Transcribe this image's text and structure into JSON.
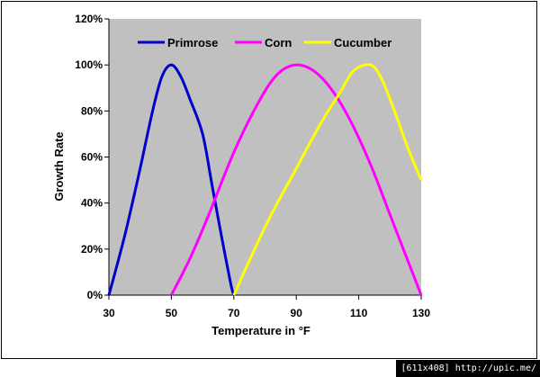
{
  "chart_data": {
    "type": "line",
    "xlabel": "Temperature in °F",
    "ylabel": "Growth Rate",
    "xlim": [
      30,
      130
    ],
    "ylim": [
      0,
      120
    ],
    "x_ticks": [
      "30",
      "50",
      "70",
      "90",
      "110",
      "130"
    ],
    "y_ticks": [
      "0%",
      "20%",
      "40%",
      "60%",
      "80%",
      "100%",
      "120%"
    ],
    "grid": false,
    "plot_background": "#c0c0c0",
    "legend_position": "top",
    "series": [
      {
        "name": "Primrose",
        "color": "#0000cc",
        "points": [
          [
            30,
            0
          ],
          [
            33,
            15
          ],
          [
            36,
            31
          ],
          [
            40,
            55
          ],
          [
            44,
            80
          ],
          [
            47,
            95
          ],
          [
            50,
            100
          ],
          [
            53,
            95
          ],
          [
            56,
            85
          ],
          [
            60,
            70
          ],
          [
            63,
            48
          ],
          [
            66,
            26
          ],
          [
            69,
            5
          ],
          [
            70,
            0
          ]
        ]
      },
      {
        "name": "Corn",
        "color": "#ff00ff",
        "points": [
          [
            50,
            0
          ],
          [
            56,
            16
          ],
          [
            62,
            35
          ],
          [
            70,
            62
          ],
          [
            78,
            84
          ],
          [
            84,
            96
          ],
          [
            90,
            100
          ],
          [
            96,
            97
          ],
          [
            102,
            88
          ],
          [
            108,
            74
          ],
          [
            114,
            56
          ],
          [
            120,
            35
          ],
          [
            126,
            14
          ],
          [
            130,
            0
          ]
        ]
      },
      {
        "name": "Cucumber",
        "color": "#ffff00",
        "points": [
          [
            70,
            0
          ],
          [
            76,
            18
          ],
          [
            82,
            35
          ],
          [
            90,
            55
          ],
          [
            98,
            75
          ],
          [
            104,
            88
          ],
          [
            108,
            97
          ],
          [
            112,
            100
          ],
          [
            115,
            99
          ],
          [
            118,
            92
          ],
          [
            122,
            78
          ],
          [
            126,
            63
          ],
          [
            130,
            50
          ]
        ]
      }
    ]
  },
  "watermark": "[611x408] http://upic.me/"
}
